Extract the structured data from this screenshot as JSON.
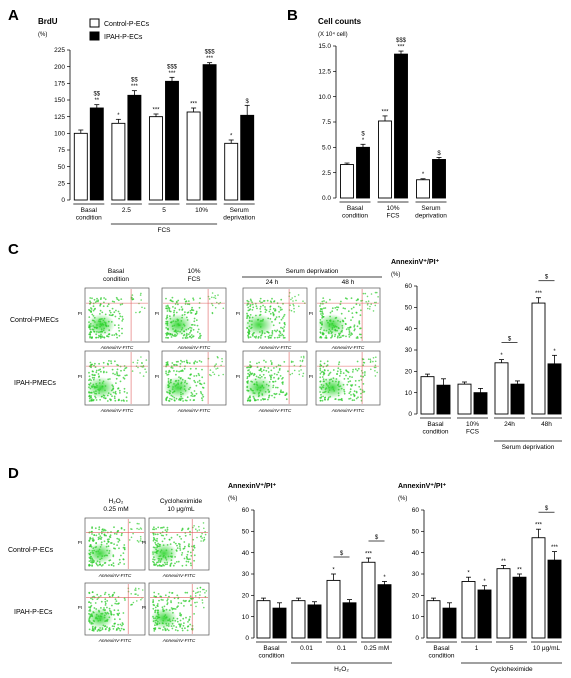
{
  "panels": {
    "A": {
      "letter": "A",
      "title": "BrdU",
      "unit": "(%)",
      "legend": [
        {
          "label": "Control-P-ECs",
          "fill": "#ffffff"
        },
        {
          "label": "IPAH-P-ECs",
          "fill": "#000000"
        }
      ],
      "group_labels": [
        "FCS"
      ],
      "category_labels": [
        [
          "Basal",
          "condition"
        ],
        [
          "2.5"
        ],
        [
          "5"
        ],
        [
          "10%"
        ],
        [
          "Serum",
          "deprivation"
        ]
      ],
      "chart_data": {
        "type": "bar",
        "categories": [
          "Basal condition",
          "2.5",
          "5",
          "10%",
          "Serum deprivation"
        ],
        "series": [
          {
            "name": "Control-P-ECs",
            "values": [
              100,
              115,
              125,
              132,
              85
            ],
            "errors": [
              5,
              6,
              4,
              6,
              5
            ]
          },
          {
            "name": "IPAH-P-ECs",
            "values": [
              138,
              157,
              178,
              203,
              127
            ],
            "errors": [
              5,
              7,
              6,
              3,
              15
            ]
          }
        ],
        "ylim": [
          0,
          225
        ],
        "yticks": [
          0,
          25,
          50,
          75,
          100,
          125,
          150,
          175,
          200,
          225
        ],
        "annotations": [
          {
            "cat": 0,
            "series": 1,
            "lines": [
              "$$",
              "**"
            ]
          },
          {
            "cat": 1,
            "series": 0,
            "lines": [
              "*"
            ]
          },
          {
            "cat": 1,
            "series": 1,
            "lines": [
              "$$",
              "***"
            ]
          },
          {
            "cat": 2,
            "series": 0,
            "lines": [
              "***"
            ]
          },
          {
            "cat": 2,
            "series": 1,
            "lines": [
              "$$$",
              "***"
            ]
          },
          {
            "cat": 3,
            "series": 0,
            "lines": [
              "***"
            ]
          },
          {
            "cat": 3,
            "series": 1,
            "lines": [
              "$$$",
              "***"
            ]
          },
          {
            "cat": 4,
            "series": 0,
            "lines": [
              "*"
            ]
          },
          {
            "cat": 4,
            "series": 1,
            "lines": [
              "$"
            ]
          }
        ]
      }
    },
    "B": {
      "letter": "B",
      "title": "Cell counts",
      "unit": "(X 10⁴ cell)",
      "category_labels": [
        [
          "Basal",
          "condition"
        ],
        [
          "10%",
          "FCS"
        ],
        [
          "Serum",
          "deprivation"
        ]
      ],
      "chart_data": {
        "type": "bar",
        "categories": [
          "Basal condition",
          "10% FCS",
          "Serum deprivation"
        ],
        "series": [
          {
            "name": "Control-P-ECs",
            "values": [
              3.3,
              7.6,
              1.8
            ],
            "errors": [
              0.15,
              0.5,
              0.1
            ]
          },
          {
            "name": "IPAH-P-ECs",
            "values": [
              5.0,
              14.2,
              3.8
            ],
            "errors": [
              0.3,
              0.3,
              0.2
            ]
          }
        ],
        "ylim": [
          0,
          15
        ],
        "yticks": [
          "0.0",
          "2.5",
          "5.0",
          "7.5",
          "10.0",
          "12.5",
          "15.0"
        ],
        "annotations": [
          {
            "cat": 0,
            "series": 1,
            "lines": [
              "$",
              "*"
            ]
          },
          {
            "cat": 1,
            "series": 0,
            "lines": [
              "***"
            ]
          },
          {
            "cat": 1,
            "series": 1,
            "lines": [
              "$$$",
              "***"
            ]
          },
          {
            "cat": 2,
            "series": 0,
            "lines": [
              "*"
            ]
          },
          {
            "cat": 2,
            "series": 1,
            "lines": [
              "$"
            ]
          }
        ]
      }
    },
    "C": {
      "letter": "C",
      "col_headers": [
        [
          "Basal",
          "condition"
        ],
        [
          "10%",
          "FCS"
        ],
        [
          "24 h"
        ],
        [
          "48 h"
        ]
      ],
      "serum_header": "Serum deprivation",
      "row_labels": [
        "Control-PMECs",
        "IPAH-PMECs"
      ],
      "axis_caption": "AnnexinV-FITC",
      "pi_caption": "PI",
      "chart_title": "AnnexinV⁺/PI⁺",
      "unit": "(%)",
      "category_labels": [
        [
          "Basal",
          "condition"
        ],
        [
          "10%",
          "FCS"
        ],
        [
          "24h"
        ],
        [
          "48h"
        ]
      ],
      "group_labels": [
        "Serum deprivation"
      ],
      "chart_data": {
        "type": "bar",
        "categories": [
          "Basal condition",
          "10% FCS",
          "24h",
          "48h"
        ],
        "series": [
          {
            "name": "Control-PMECs",
            "values": [
              17.5,
              14,
              24,
              52
            ],
            "errors": [
              1.2,
              1,
              1.5,
              2.5
            ]
          },
          {
            "name": "IPAH-PMECs",
            "values": [
              13.5,
              10,
              14,
              23.5
            ],
            "errors": [
              3,
              2,
              1.5,
              4
            ]
          }
        ],
        "ylim": [
          0,
          60
        ],
        "yticks": [
          0,
          10,
          20,
          30,
          40,
          50,
          60
        ],
        "annotations": [
          {
            "cat": 2,
            "series": 0,
            "lines": [
              "*"
            ]
          },
          {
            "cat": 3,
            "series": 0,
            "lines": [
              "***"
            ]
          },
          {
            "cat": 3,
            "series": 1,
            "lines": [
              "*"
            ]
          }
        ],
        "brackets": [
          {
            "cat": 2,
            "label": "$"
          },
          {
            "cat": 3,
            "label": "$"
          }
        ]
      }
    },
    "D": {
      "letter": "D",
      "col_headers": [
        [
          "H₂O₂",
          "0.25 mM"
        ],
        [
          "Cycloheximide",
          "10 μg/mL"
        ]
      ],
      "row_labels": [
        "Control-P-ECs",
        "IPAH-P-ECs"
      ],
      "axis_caption": "AnnexinV-FITC",
      "pi_caption": "PI",
      "h2o2": {
        "chart_title": "AnnexinV⁺/PI⁺",
        "unit": "(%)",
        "category_labels": [
          [
            "Basal",
            "condition"
          ],
          [
            "0.01"
          ],
          [
            "0.1"
          ],
          [
            "0.25 mM"
          ]
        ],
        "group_labels": [
          "H₂O₂"
        ],
        "chart_data": {
          "type": "bar",
          "categories": [
            "Basal condition",
            "0.01",
            "0.1",
            "0.25 mM"
          ],
          "series": [
            {
              "name": "Control-P-ECs",
              "values": [
                17.5,
                17.5,
                27,
                35.5
              ],
              "errors": [
                1.2,
                1.2,
                3,
                2
              ]
            },
            {
              "name": "IPAH-P-ECs",
              "values": [
                14,
                15.5,
                16.5,
                25
              ],
              "errors": [
                2.5,
                1.5,
                1.5,
                1.5
              ]
            }
          ],
          "ylim": [
            0,
            60
          ],
          "yticks": [
            0,
            10,
            20,
            30,
            40,
            50,
            60
          ],
          "annotations": [
            {
              "cat": 2,
              "series": 0,
              "lines": [
                "*"
              ]
            },
            {
              "cat": 3,
              "series": 0,
              "lines": [
                "***"
              ]
            },
            {
              "cat": 3,
              "series": 1,
              "lines": [
                "*"
              ]
            }
          ],
          "brackets": [
            {
              "cat": 2,
              "label": "$"
            },
            {
              "cat": 3,
              "label": "$"
            }
          ]
        }
      },
      "chx": {
        "chart_title": "AnnexinV⁺/PI⁺",
        "unit": "(%)",
        "category_labels": [
          [
            "Basal",
            "condition"
          ],
          [
            "1"
          ],
          [
            "5"
          ],
          [
            "10 μg/mL"
          ]
        ],
        "group_labels": [
          "Cycloheximide"
        ],
        "chart_data": {
          "type": "bar",
          "categories": [
            "Basal condition",
            "1",
            "5",
            "10 μg/mL"
          ],
          "series": [
            {
              "name": "Control-P-ECs",
              "values": [
                17.5,
                26.5,
                32.5,
                47
              ],
              "errors": [
                1.2,
                2,
                1.5,
                4
              ]
            },
            {
              "name": "IPAH-P-ECs",
              "values": [
                14,
                22.5,
                28.5,
                36.5
              ],
              "errors": [
                2.5,
                2,
                1.5,
                4
              ]
            }
          ],
          "ylim": [
            0,
            60
          ],
          "yticks": [
            0,
            10,
            20,
            30,
            40,
            50,
            60
          ],
          "annotations": [
            {
              "cat": 1,
              "series": 0,
              "lines": [
                "*"
              ]
            },
            {
              "cat": 1,
              "series": 1,
              "lines": [
                "*"
              ]
            },
            {
              "cat": 2,
              "series": 0,
              "lines": [
                "**"
              ]
            },
            {
              "cat": 2,
              "series": 1,
              "lines": [
                "**"
              ]
            },
            {
              "cat": 3,
              "series": 0,
              "lines": [
                "***"
              ]
            },
            {
              "cat": 3,
              "series": 1,
              "lines": [
                "***"
              ]
            }
          ],
          "brackets": [
            {
              "cat": 3,
              "label": "$"
            }
          ]
        }
      }
    }
  }
}
